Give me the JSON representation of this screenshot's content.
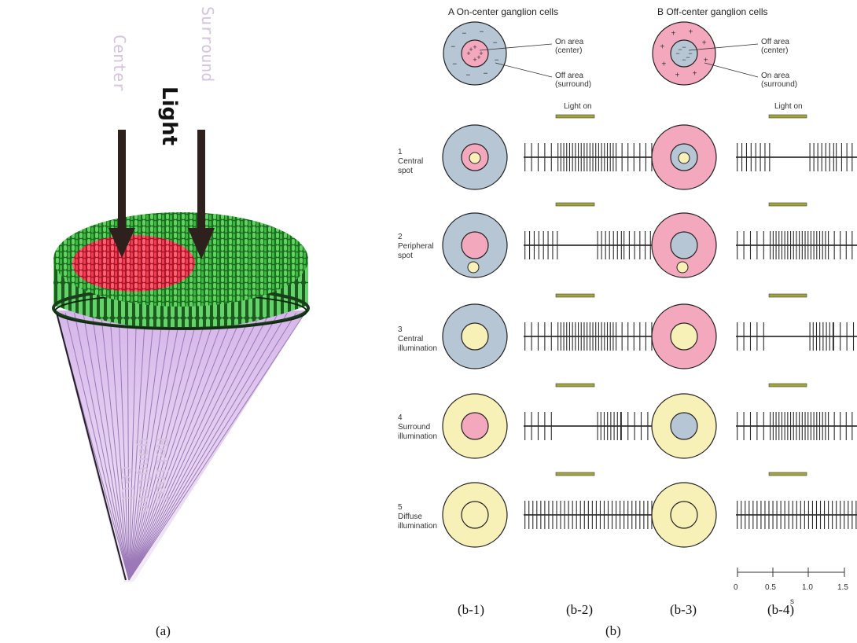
{
  "panel_a": {
    "center_label": "Center",
    "surround_label": "Surround",
    "light_label": "Light",
    "cell_label": "Retinal ganglion cell",
    "cell_label_lines": [
      "Retinal",
      "ganglion",
      "cell"
    ],
    "caption": "(a)",
    "colors": {
      "rods": "#3cbc3c",
      "center": "#ec4a5a",
      "fibers": "#c9a6de",
      "arrow": "#2b1d1a"
    }
  },
  "panel_b": {
    "caption": "(b)",
    "columns": [
      {
        "heading": "A  On-center ganglion cells",
        "sub_caption": "(b-1)",
        "trace_caption": "(b-2)"
      },
      {
        "heading": "B  Off-center ganglion cells",
        "sub_caption": "(b-3)",
        "trace_caption": "(b-4)"
      }
    ],
    "legend_on_center": {
      "center_label": "On area\n(center)",
      "surround_label": "Off area\n(surround)"
    },
    "legend_off_center": {
      "center_label": "Off area\n(center)",
      "surround_label": "On area\n(surround)"
    },
    "light_on_label": "Light on",
    "rows": [
      {
        "label": "1\nCentral\nspot"
      },
      {
        "label": "2\nPeripheral\nspot"
      },
      {
        "label": "3\nCentral\nillumination"
      },
      {
        "label": "4\nSurround\nillumination"
      },
      {
        "label": "5\nDiffuse\nillumination"
      }
    ],
    "time_axis": {
      "ticks": [
        "0",
        "0.5",
        "1.0",
        "1.5"
      ],
      "unit": "s"
    },
    "colors": {
      "on_area": "#f4a8be",
      "off_area": "#b7c6d4",
      "light": "#f7f1b8",
      "light_bar": "#a4a43c"
    }
  }
}
